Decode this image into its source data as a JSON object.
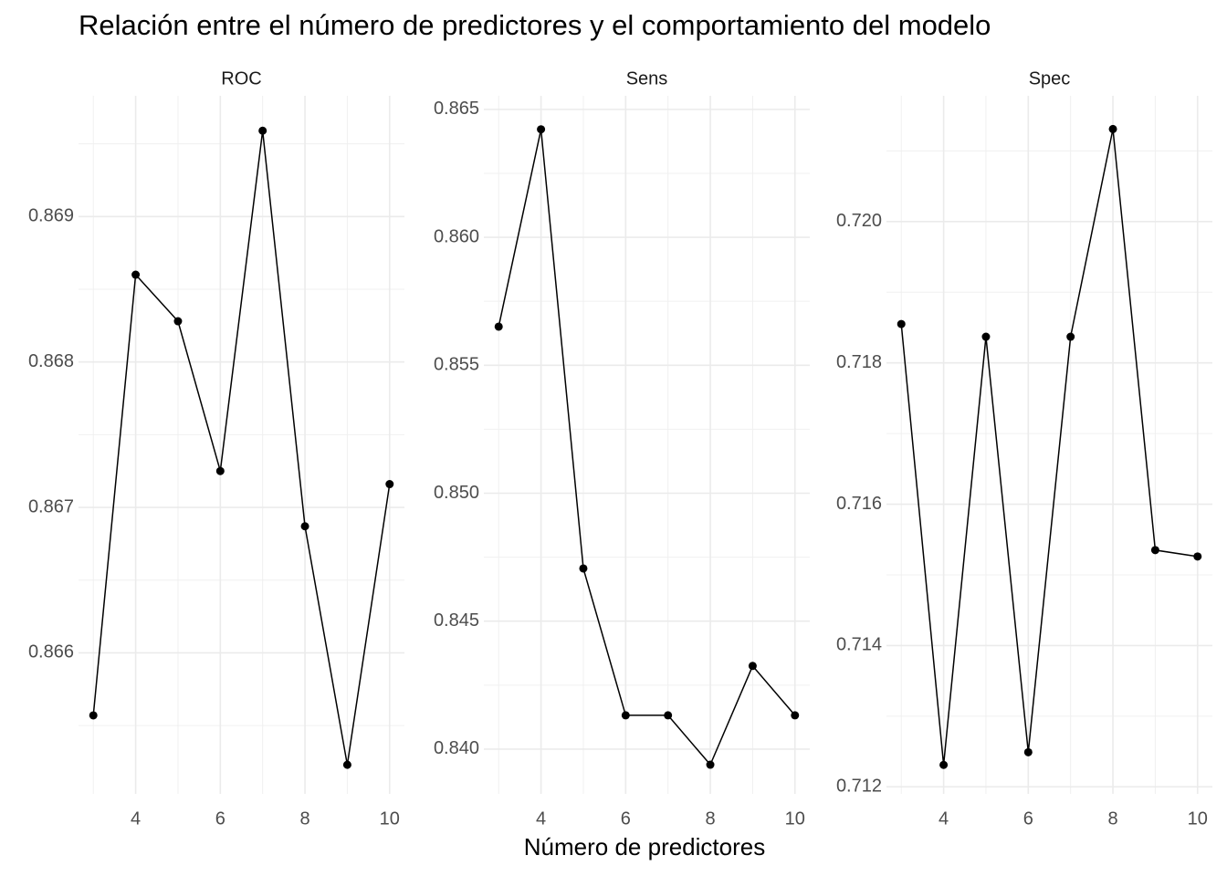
{
  "title": "Relación entre el número de predictores y el comportamiento del modelo",
  "x_label": "Número de predictores",
  "chart_data": [
    {
      "type": "line",
      "subtitle": "ROC",
      "x": [
        3,
        4,
        5,
        6,
        7,
        8,
        9,
        10
      ],
      "values": [
        0.86557,
        0.8686,
        0.86828,
        0.86725,
        0.86959,
        0.86687,
        0.86523,
        0.86716
      ],
      "color": "#000000",
      "xlim": [
        2.65,
        10.35
      ],
      "xticks": [
        4,
        6,
        8,
        10
      ],
      "ylim": [
        0.86503,
        0.86983
      ],
      "yticks": [
        0.866,
        0.867,
        0.868,
        0.869
      ],
      "grid": true
    },
    {
      "type": "line",
      "subtitle": "Sens",
      "x": [
        3,
        4,
        5,
        6,
        7,
        8,
        9,
        10
      ],
      "values": [
        0.85651,
        0.86422,
        0.84706,
        0.84132,
        0.84132,
        0.83939,
        0.84325,
        0.84132
      ],
      "color": "#000000",
      "xlim": [
        2.65,
        10.35
      ],
      "xticks": [
        4,
        6,
        8,
        10
      ],
      "ylim": [
        0.83825,
        0.86553
      ],
      "yticks": [
        {
          "value": 0.84,
          "label": "0.840"
        },
        0.845,
        {
          "value": 0.85,
          "label": "0.850"
        },
        0.855,
        {
          "value": 0.86,
          "label": "0.860"
        },
        0.865
      ],
      "grid": true
    },
    {
      "type": "line",
      "subtitle": "Spec",
      "x": [
        3,
        4,
        5,
        6,
        7,
        8,
        9,
        10
      ],
      "values": [
        0.71855,
        0.71231,
        0.71837,
        0.71249,
        0.71837,
        0.72131,
        0.71535,
        0.71526
      ],
      "color": "#000000",
      "xlim": [
        2.65,
        10.35
      ],
      "xticks": [
        4,
        6,
        8,
        10
      ],
      "ylim": [
        0.7119,
        0.72178
      ],
      "yticks": [
        0.712,
        0.714,
        0.716,
        0.718,
        {
          "value": 0.72,
          "label": "0.720"
        }
      ],
      "grid": true
    }
  ]
}
